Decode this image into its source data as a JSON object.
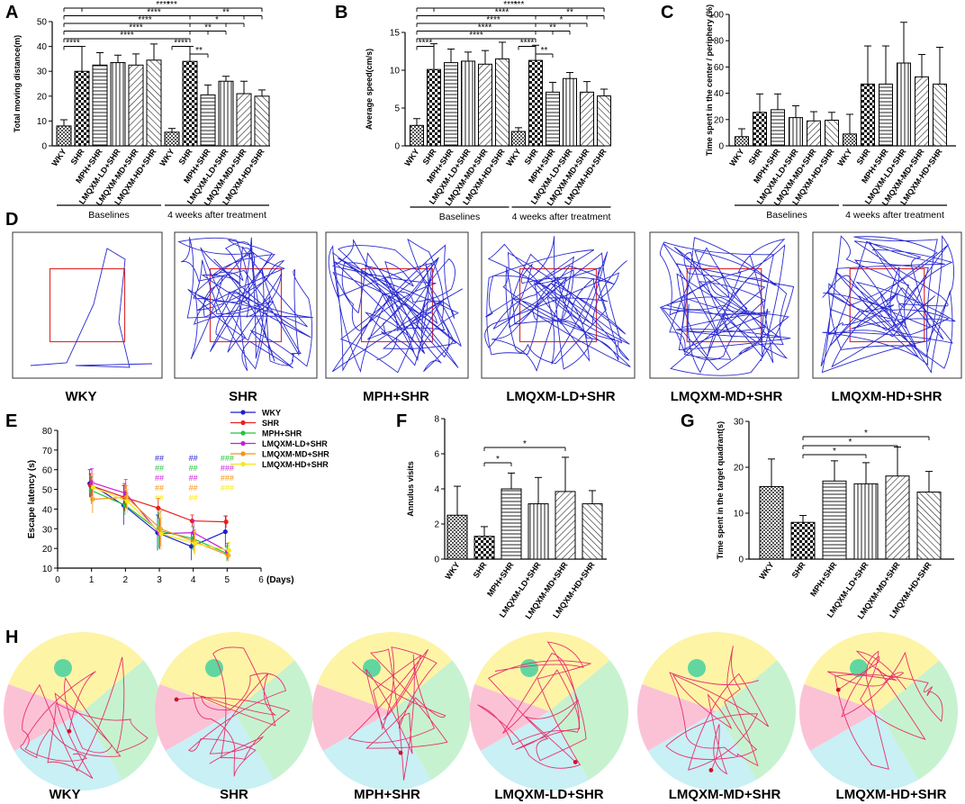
{
  "figure": {
    "panel_letters": [
      "A",
      "B",
      "C",
      "D",
      "E",
      "F",
      "G",
      "H"
    ]
  },
  "groups": [
    "WKY",
    "SHR",
    "MPH+SHR",
    "LMQXM-LD+SHR",
    "LMQXM-MD+SHR",
    "LMQXM-HD+SHR"
  ],
  "colors": {
    "WKY": "#1f1fcc",
    "SHR": "#e8201f",
    "MPH+SHR": "#22c33b",
    "LMQXM-LD+SHR": "#c51fd8",
    "LMQXM-MD+SHR": "#f39316",
    "LMQXM-HD+SHR": "#f5e619",
    "track": "#2a2ad0",
    "box": "#e03030",
    "swim": "#e8306a"
  },
  "chart_data": [
    {
      "id": "A",
      "type": "bar",
      "ylabel": "Total moving distance(m)",
      "ylim": [
        0,
        50
      ],
      "yticks": [
        0,
        10,
        20,
        30,
        40,
        50
      ],
      "categories": [
        "WKY",
        "SHR",
        "MPH+SHR",
        "LMQXM-LD+SHR",
        "LMQXM-MD+SHR",
        "LMQXM-HD+SHR"
      ],
      "group_labels": [
        "Baselines",
        "4 weeks after treatment"
      ],
      "series": [
        {
          "name": "Baselines",
          "values": [
            8,
            30,
            32.5,
            33.5,
            32.5,
            34.5
          ],
          "errors": [
            2.5,
            10,
            5,
            3,
            4.5,
            6.5
          ]
        },
        {
          "name": "4 weeks after treatment",
          "values": [
            5.5,
            34,
            20.5,
            26,
            21,
            20
          ],
          "errors": [
            1.5,
            6,
            4,
            2,
            5,
            2.5
          ]
        }
      ],
      "sig": [
        {
          "from": 0,
          "to": 11,
          "label": "****",
          "level": 6
        },
        {
          "from": 0,
          "to": 10,
          "label": "****",
          "level": 5
        },
        {
          "from": 0,
          "to": 9,
          "label": "****",
          "level": 4
        },
        {
          "from": 0,
          "to": 8,
          "label": "****",
          "level": 3
        },
        {
          "from": 0,
          "to": 7,
          "label": "****",
          "level": 2
        },
        {
          "from": 0,
          "to": 1,
          "label": "****",
          "level": 1
        },
        {
          "from": 1,
          "to": 11,
          "label": "***",
          "level": 6
        },
        {
          "from": 7,
          "to": 11,
          "label": "**",
          "level": 5
        },
        {
          "from": 7,
          "to": 10,
          "label": "*",
          "level": 4
        },
        {
          "from": 7,
          "to": 9,
          "label": "**",
          "level": 3
        },
        {
          "from": 6,
          "to": 7,
          "label": "****",
          "level": 1
        },
        {
          "from": 7,
          "to": 8,
          "label": "**",
          "level": 0
        }
      ]
    },
    {
      "id": "B",
      "type": "bar",
      "ylabel": "Average speed(cm/s)",
      "ylim": [
        0,
        15
      ],
      "yticks": [
        0,
        5,
        10,
        15
      ],
      "categories": [
        "WKY",
        "SHR",
        "MPH+SHR",
        "LMQXM-LD+SHR",
        "LMQXM-MD+SHR",
        "LMQXM-HD+SHR"
      ],
      "group_labels": [
        "Baselines",
        "4 weeks after treatment"
      ],
      "series": [
        {
          "name": "Baselines",
          "values": [
            2.7,
            10.1,
            11,
            11.2,
            10.8,
            11.5
          ],
          "errors": [
            0.9,
            3.4,
            1.8,
            1.2,
            1.8,
            2.2
          ]
        },
        {
          "name": "4 weeks after treatment",
          "values": [
            1.9,
            11.3,
            7.1,
            8.9,
            7.1,
            6.6
          ],
          "errors": [
            0.5,
            2,
            1.3,
            0.8,
            1.4,
            0.9
          ]
        }
      ],
      "sig": [
        {
          "from": 0,
          "to": 11,
          "label": "****",
          "level": 6
        },
        {
          "from": 0,
          "to": 10,
          "label": "****",
          "level": 5
        },
        {
          "from": 0,
          "to": 9,
          "label": "****",
          "level": 4
        },
        {
          "from": 0,
          "to": 8,
          "label": "****",
          "level": 3
        },
        {
          "from": 0,
          "to": 7,
          "label": "****",
          "level": 2
        },
        {
          "from": 0,
          "to": 1,
          "label": "****",
          "level": 1
        },
        {
          "from": 1,
          "to": 11,
          "label": "***",
          "level": 6
        },
        {
          "from": 7,
          "to": 11,
          "label": "**",
          "level": 5
        },
        {
          "from": 7,
          "to": 10,
          "label": "*",
          "level": 4
        },
        {
          "from": 7,
          "to": 9,
          "label": "**",
          "level": 3
        },
        {
          "from": 6,
          "to": 7,
          "label": "****",
          "level": 1
        },
        {
          "from": 7,
          "to": 8,
          "label": "**",
          "level": 0
        }
      ]
    },
    {
      "id": "C",
      "type": "bar",
      "ylabel": "Time spent in the center / periphery (%)",
      "ylim": [
        0,
        100
      ],
      "yticks": [
        0,
        20,
        40,
        60,
        80,
        100
      ],
      "categories": [
        "WKY",
        "SHR",
        "MPH+SHR",
        "LMQXM-LD+SHR",
        "LMQXM-MD+SHR",
        "LMQXM-HD+SHR"
      ],
      "group_labels": [
        "Baselines",
        "4 weeks after treatment"
      ],
      "series": [
        {
          "name": "Baselines",
          "values": [
            7,
            25.5,
            27.5,
            21.5,
            19,
            19.5
          ],
          "errors": [
            6,
            14,
            12,
            9,
            7,
            6
          ]
        },
        {
          "name": "4 weeks after treatment",
          "values": [
            9,
            47,
            47,
            63,
            52.5,
            47
          ],
          "errors": [
            15,
            29,
            29,
            31,
            17,
            28
          ]
        }
      ],
      "sig": [
        {
          "from": 2,
          "to": 9,
          "label": "*",
          "level": 6
        }
      ]
    },
    {
      "id": "E",
      "type": "line",
      "xlabel": "(Days)",
      "ylabel": "Escape latency (s)",
      "xlim": [
        0,
        6
      ],
      "ylim": [
        10,
        80
      ],
      "xticks": [
        0,
        1,
        2,
        3,
        4,
        5,
        6
      ],
      "yticks": [
        10,
        20,
        30,
        40,
        50,
        60,
        70,
        80
      ],
      "x": [
        1,
        2,
        3,
        4,
        5
      ],
      "series": [
        {
          "name": "WKY",
          "values": [
            53,
            42,
            28,
            21,
            28.5
          ],
          "errors": [
            7,
            10,
            9,
            7,
            8
          ]
        },
        {
          "name": "SHR",
          "values": [
            52,
            46,
            40.5,
            34,
            33.5
          ],
          "errors": [
            6,
            7,
            5,
            3,
            3
          ]
        },
        {
          "name": "MPH+SHR",
          "values": [
            49.5,
            42,
            29,
            25,
            17.5
          ],
          "errors": [
            7,
            5,
            9,
            6,
            4
          ]
        },
        {
          "name": "LMQXM-LD+SHR",
          "values": [
            53.5,
            48,
            27.5,
            28,
            18.5
          ],
          "errors": [
            7,
            7,
            8,
            6,
            4
          ]
        },
        {
          "name": "LMQXM-MD+SHR",
          "values": [
            45,
            46,
            30,
            23.5,
            16.5
          ],
          "errors": [
            7,
            6,
            9,
            6,
            3
          ]
        },
        {
          "name": "LMQXM-HD+SHR",
          "values": [
            51,
            44,
            27.5,
            22.5,
            19
          ],
          "errors": [
            7,
            6,
            8,
            6,
            4
          ]
        }
      ],
      "hash_marks": [
        {
          "day": 3,
          "colors": [
            "WKY",
            "MPH+SHR",
            "LMQXM-LD+SHR",
            "LMQXM-MD+SHR",
            "LMQXM-HD+SHR"
          ],
          "label": "##"
        },
        {
          "day": 4,
          "colors": [
            "WKY",
            "MPH+SHR",
            "LMQXM-LD+SHR",
            "LMQXM-MD+SHR",
            "LMQXM-HD+SHR"
          ],
          "label": "##"
        },
        {
          "day": 5,
          "colors": [
            "MPH+SHR",
            "LMQXM-LD+SHR",
            "LMQXM-MD+SHR",
            "LMQXM-HD+SHR"
          ],
          "label": "###"
        }
      ]
    },
    {
      "id": "F",
      "type": "bar",
      "ylabel": "Annulus visits",
      "ylim": [
        0,
        8
      ],
      "yticks": [
        0,
        2,
        4,
        6,
        8
      ],
      "categories": [
        "WKY",
        "SHR",
        "MPH+SHR",
        "LMQXM-LD+SHR",
        "LMQXM-MD+SHR",
        "LMQXM-HD+SHR"
      ],
      "series": [
        {
          "name": "visits",
          "values": [
            2.5,
            1.3,
            4,
            3.15,
            3.85,
            3.15
          ],
          "errors": [
            1.65,
            0.55,
            0.9,
            1.5,
            1.95,
            0.75
          ]
        }
      ],
      "sig": [
        {
          "from": 1,
          "to": 4,
          "label": "*",
          "level": 1
        },
        {
          "from": 1,
          "to": 2,
          "label": "*",
          "level": 0
        }
      ]
    },
    {
      "id": "G",
      "type": "bar",
      "ylabel": "Time spent in the target quadrant(s)",
      "ylim": [
        0,
        30
      ],
      "yticks": [
        0,
        10,
        20,
        30
      ],
      "categories": [
        "WKY",
        "SHR",
        "MPH+SHR",
        "LMQXM-LD+SHR",
        "LMQXM-MD+SHR",
        "LMQXM-HD+SHR"
      ],
      "series": [
        {
          "name": "time",
          "values": [
            15.8,
            8,
            17,
            16.4,
            18.1,
            14.6
          ],
          "errors": [
            6,
            1.5,
            4.4,
            4.6,
            6.3,
            4.5
          ]
        }
      ],
      "sig": [
        {
          "from": 1,
          "to": 5,
          "label": "*",
          "level": 2
        },
        {
          "from": 1,
          "to": 4,
          "label": "*",
          "level": 1
        },
        {
          "from": 1,
          "to": 3,
          "label": "*",
          "level": 0
        }
      ]
    }
  ]
}
